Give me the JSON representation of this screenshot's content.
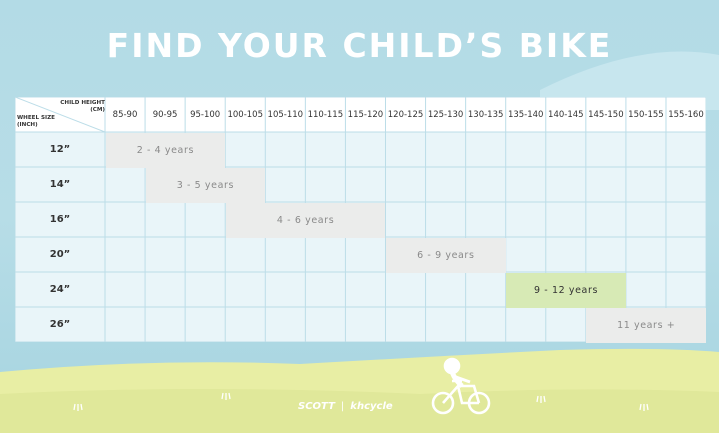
{
  "title": "FIND YOUR CHILD’S BIKE",
  "table": {
    "corner_top": [
      "CHILD HEIGHT",
      "(CM)"
    ],
    "corner_bottom": [
      "WHEEL SIZE",
      "(INCH)"
    ],
    "height_columns": [
      "85-90",
      "90-95",
      "95-100",
      "100-105",
      "105-110",
      "110-115",
      "115-120",
      "120-125",
      "125-130",
      "130-135",
      "135-140",
      "140-145",
      "145-150",
      "150-155",
      "155-160"
    ],
    "wheel_rows": [
      "12”",
      "14”",
      "16”",
      "20”",
      "24”",
      "26”"
    ],
    "age_ranges": [
      "2 - 4 years",
      "3 - 5 years",
      "4 - 6 years",
      "6 - 9 years",
      "9 - 12 years",
      "11 years +"
    ]
  },
  "ranges": [
    {
      "row": 0,
      "from": 0,
      "to": 2,
      "label_index": 0,
      "highlight": false
    },
    {
      "row": 1,
      "from": 1,
      "to": 3,
      "label_index": 1,
      "highlight": false
    },
    {
      "row": 2,
      "from": 3,
      "to": 6,
      "label_index": 2,
      "highlight": false
    },
    {
      "row": 3,
      "from": 7,
      "to": 9,
      "label_index": 3,
      "highlight": false
    },
    {
      "row": 4,
      "from": 10,
      "to": 12,
      "label_index": 4,
      "highlight": true
    },
    {
      "row": 5,
      "from": 12,
      "to": 14,
      "label_index": 5,
      "highlight": false
    }
  ],
  "footer": {
    "brand_1": "SCOTT",
    "separator": "|",
    "brand_2": "khcycle",
    "bike_icon": "child-bicycle-icon"
  },
  "colors": {
    "sky": "#b3dbe6",
    "cell": "#e9f5f9",
    "grid": "#bcdde8",
    "range_gray": "#ebeceb",
    "range_highlight": "#d7eab5",
    "grass_light": "#e8eea4",
    "grass_dark": "#d7e38c",
    "white": "#ffffff"
  }
}
